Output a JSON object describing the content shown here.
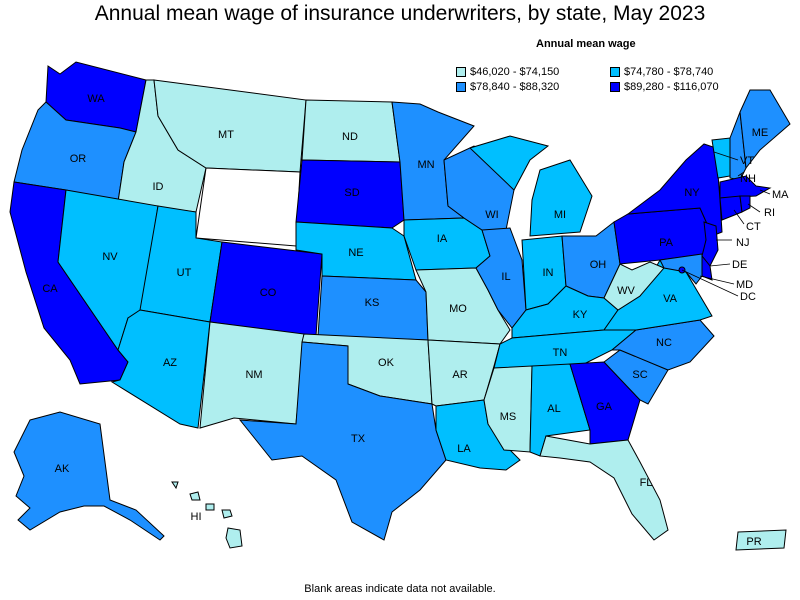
{
  "title": "Annual mean wage of insurance underwriters, by state, May 2023",
  "legend": {
    "title": "Annual mean wage",
    "items": [
      {
        "label": "$46,020 - $74,150",
        "color": "#afeeee"
      },
      {
        "label": "$74,780 - $78,740",
        "color": "#00bfff"
      },
      {
        "label": "$78,840 - $88,320",
        "color": "#1e90ff"
      },
      {
        "label": "$89,280 - $116,070",
        "color": "#0000ff"
      }
    ]
  },
  "footnote": "Blank areas indicate data not available.",
  "colors": {
    "c1": "#afeeee",
    "c2": "#00bfff",
    "c3": "#1e90ff",
    "c4": "#0000ff",
    "none": "#ffffff"
  },
  "states": {
    "WA": "c4",
    "OR": "c3",
    "CA": "c4",
    "ID": "c1",
    "NV": "c2",
    "MT": "c1",
    "WY": "none",
    "UT": "c2",
    "AZ": "c2",
    "CO": "c4",
    "NM": "c1",
    "ND": "c1",
    "SD": "c4",
    "NE": "c2",
    "KS": "c3",
    "OK": "c1",
    "TX": "c3",
    "MN": "c3",
    "IA": "c2",
    "MO": "c1",
    "AR": "c1",
    "LA": "c2",
    "WI": "c3",
    "IL": "c3",
    "MI": "c2",
    "IN": "c2",
    "OH": "c3",
    "KY": "c2",
    "TN": "c2",
    "MS": "c1",
    "AL": "c2",
    "GA": "c4",
    "FL": "c1",
    "SC": "c3",
    "NC": "c3",
    "VA": "c2",
    "WV": "c1",
    "PA": "c4",
    "NY": "c4",
    "VT": "c2",
    "NH": "c3",
    "ME": "c3",
    "MA": "c4",
    "RI": "c4",
    "CT": "c4",
    "NJ": "c4",
    "DE": "c4",
    "MD": "c3",
    "DC": "c4",
    "AK": "c3",
    "HI": "c1",
    "PR": "c1"
  }
}
